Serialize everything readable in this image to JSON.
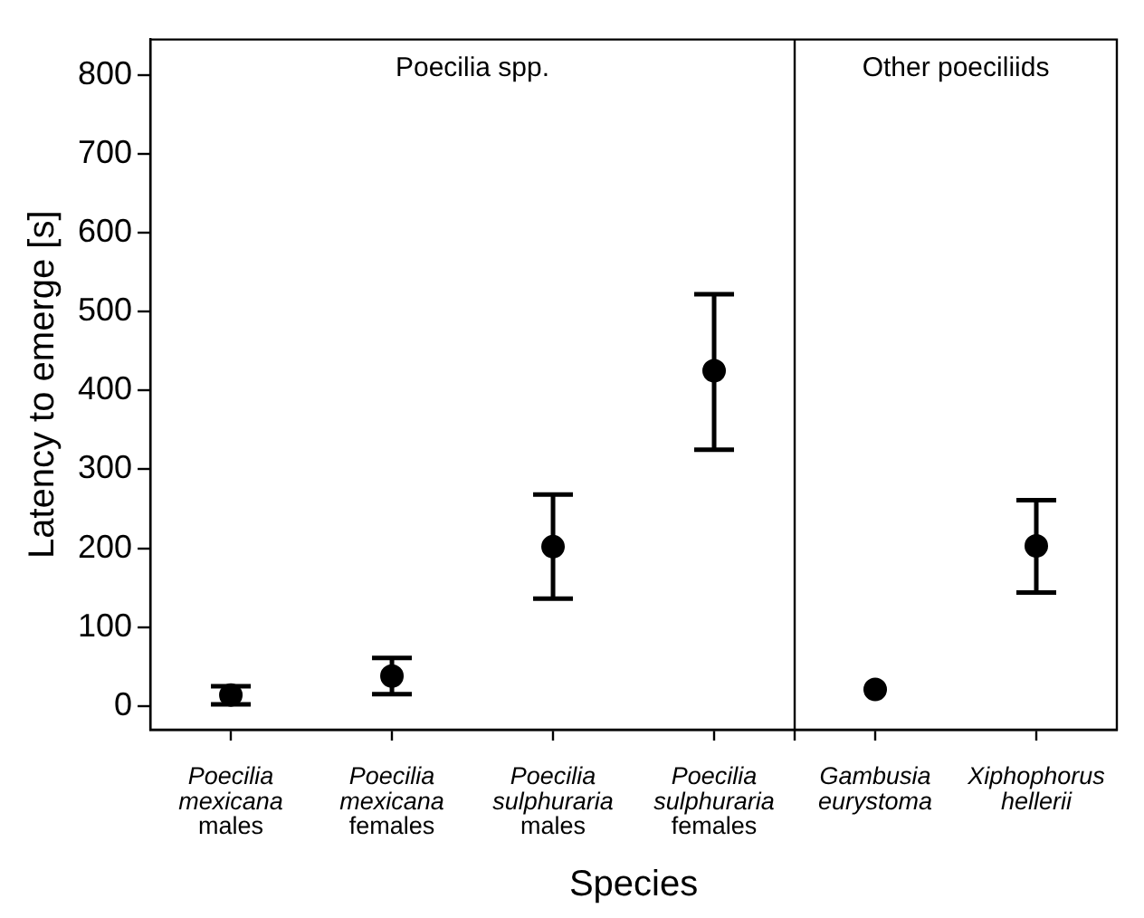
{
  "chart_data": {
    "type": "scatter",
    "xlabel": "Species",
    "ylabel": "Latency to emerge [s]",
    "categories": [
      "Poecilia\nmexicana\nmales",
      "Poecilia\nmexicana\nfemales",
      "Poecilia\nsulphuraria\nmales",
      "Poecilia\nsulphuraria\nfemales",
      "Gambusia\neurystoma",
      "Xiphophorus\nhellerii"
    ],
    "series": [
      {
        "color": "#000000",
        "values": [
          14,
          38,
          202,
          425,
          21,
          203
        ],
        "errors": [
          [
            2,
            25
          ],
          [
            15,
            61
          ],
          [
            136,
            268
          ],
          [
            325,
            522
          ],
          null,
          [
            144,
            261
          ]
        ]
      }
    ],
    "ylim": [
      -30,
      845
    ],
    "yticks": [
      0,
      100,
      200,
      300,
      400,
      500,
      600,
      700,
      800
    ],
    "annotations": [
      "Poecilia spp.",
      "Other poeciliids"
    ],
    "marker": "circle",
    "grid": false,
    "legend": false
  }
}
